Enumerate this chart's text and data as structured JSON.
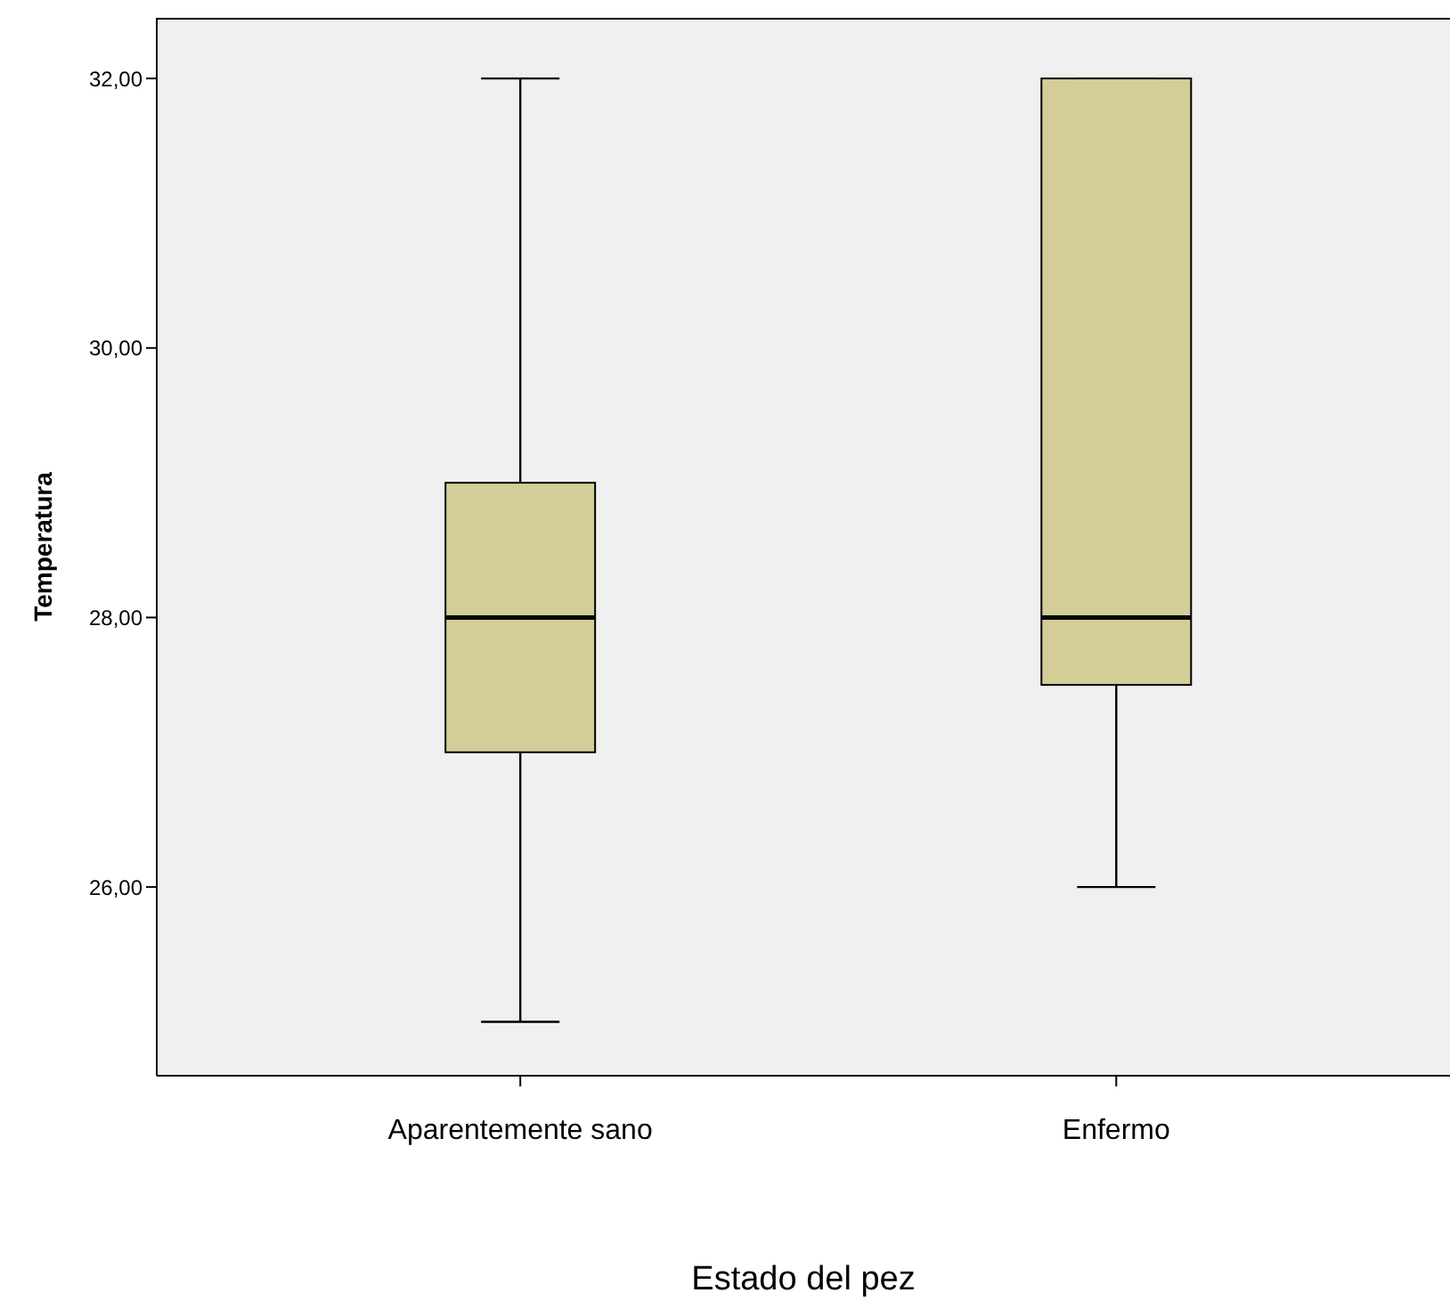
{
  "chart_data": {
    "type": "box",
    "xlabel": "Estado del pez",
    "ylabel": "Temperatura",
    "categories": [
      "Aparentemente sano",
      "Enfermo"
    ],
    "boxes": [
      {
        "low": 25,
        "q1": 27,
        "median": 28,
        "q3": 29,
        "high": 32
      },
      {
        "low": 26,
        "q1": 27.5,
        "median": 28,
        "q3": 32,
        "high": 32
      }
    ],
    "color": "#d3ce97",
    "ylim": [
      24.6,
      32.45
    ],
    "yticks": [
      {
        "value": 26,
        "label": "26,00"
      },
      {
        "value": 28,
        "label": "28,00"
      },
      {
        "value": 30,
        "label": "30,00"
      },
      {
        "value": 32,
        "label": "32,00"
      }
    ]
  }
}
